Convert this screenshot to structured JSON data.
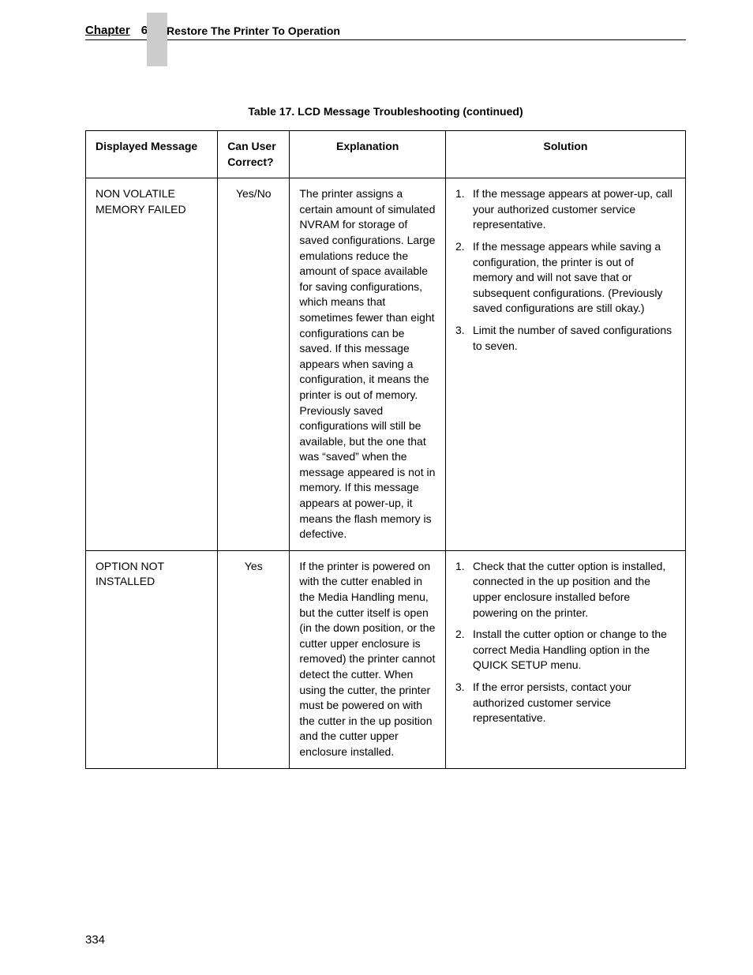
{
  "header": {
    "chapter_label": "Chapter",
    "chapter_num": "6",
    "chapter_title": "Restore The Printer To Operation"
  },
  "table_caption": "Table 17. LCD Message Troubleshooting (continued)",
  "columns": {
    "c1": "Displayed Message",
    "c2": "Can User Correct?",
    "c3": "Explanation",
    "c4": "Solution"
  },
  "rows": [
    {
      "message": "NON VOLATILE MEMORY FAILED",
      "correct": "Yes/No",
      "explanation": "The printer assigns a certain amount of simulated NVRAM for storage of saved configurations. Large emulations reduce the amount of space available for saving configurations, which means that sometimes fewer than eight configurations can be saved. If this message appears when saving a configuration, it means the printer is out of memory. Previously saved configurations will still be available, but the one that was “saved” when the message appeared is not in memory. If this message appears at power-up, it means the flash memory is defective.",
      "solutions": [
        {
          "num": "1.",
          "text": "If the message appears at power-up, call your authorized customer service representative."
        },
        {
          "num": "2.",
          "text": "If the message appears while saving a configuration, the printer is out of memory and will not save that or subsequent configurations. (Previously saved configurations are still okay.)"
        },
        {
          "num": "3.",
          "text": "Limit the number of saved configurations to seven."
        }
      ]
    },
    {
      "message": "OPTION NOT INSTALLED",
      "correct": "Yes",
      "explanation": "If the printer is powered on with the cutter enabled in the Media Handling menu, but the cutter itself is open (in the down position, or the cutter upper enclosure is removed) the printer cannot detect the cutter. When using the cutter, the printer must be powered on with the cutter in the up position and the cutter upper enclosure installed.",
      "solutions": [
        {
          "num": "1.",
          "text": "Check that the cutter option is installed, connected in the up position and the upper enclosure installed before powering on the printer."
        },
        {
          "num": "2.",
          "text": "Install the cutter option or change to the correct Media Handling option in the QUICK SETUP menu."
        },
        {
          "num": "3.",
          "text": "If the error persists, contact your authorized customer service representative."
        }
      ]
    }
  ],
  "page_number": "334"
}
